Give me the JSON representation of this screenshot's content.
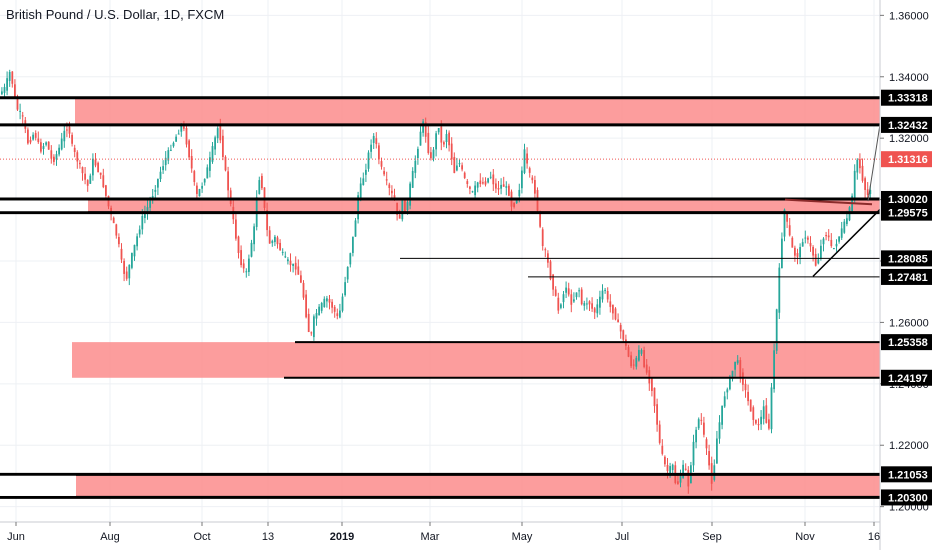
{
  "chart_data": {
    "type": "candlestick",
    "title": "British Pound / U.S. Dollar, 1D, FXCM",
    "ylim": [
      1.195,
      1.365
    ],
    "grid": true,
    "y_ticks": [
      {
        "v": 1.36,
        "label": "1.36000"
      },
      {
        "v": 1.34,
        "label": "1.34000"
      },
      {
        "v": 1.32,
        "label": "1.32000"
      },
      {
        "v": 1.3,
        "label": "1.30000"
      },
      {
        "v": 1.28,
        "label": "1.28000"
      },
      {
        "v": 1.26,
        "label": "1.26000"
      },
      {
        "v": 1.24,
        "label": "1.24000"
      },
      {
        "v": 1.22,
        "label": "1.22000"
      },
      {
        "v": 1.2,
        "label": "1.20000"
      }
    ],
    "x_ticks": [
      "Jun",
      "Aug",
      "Oct",
      "13",
      "2019",
      "Mar",
      "May",
      "Jul",
      "Sep",
      "Nov",
      "16"
    ],
    "x_ticks_bold": [
      "2019"
    ],
    "zones": [
      {
        "low": 1.32432,
        "high": 1.33318,
        "label": "supply-zone-upper"
      },
      {
        "low": 1.29575,
        "high": 1.3002,
        "label": "pivot-zone"
      },
      {
        "low": 1.24197,
        "high": 1.25358,
        "label": "mid-zone"
      },
      {
        "low": 1.203,
        "high": 1.21053,
        "label": "demand-zone-lower"
      }
    ],
    "levels": [
      {
        "value": 1.33318,
        "label": "1.33318",
        "style": "heavy"
      },
      {
        "value": 1.32432,
        "label": "1.32432",
        "style": "heavy"
      },
      {
        "value": 1.3002,
        "label": "1.30020",
        "style": "heavy"
      },
      {
        "value": 1.29575,
        "label": "1.29575",
        "style": "heavy"
      },
      {
        "value": 1.28085,
        "label": "1.28085",
        "style": "thin"
      },
      {
        "value": 1.27481,
        "label": "1.27481",
        "style": "thin"
      },
      {
        "value": 1.25358,
        "label": "1.25358",
        "style": "medium"
      },
      {
        "value": 1.24197,
        "label": "1.24197",
        "style": "medium"
      },
      {
        "value": 1.21053,
        "label": "1.21053",
        "style": "heavy"
      },
      {
        "value": 1.203,
        "label": "1.20300",
        "style": "heavy"
      }
    ],
    "last_price": {
      "value": 1.31316,
      "label": "1.31316"
    },
    "price_path": [
      [
        0,
        1.334
      ],
      [
        6,
        1.336
      ],
      [
        12,
        1.342
      ],
      [
        18,
        1.33
      ],
      [
        24,
        1.327
      ],
      [
        30,
        1.318
      ],
      [
        36,
        1.322
      ],
      [
        42,
        1.316
      ],
      [
        48,
        1.319
      ],
      [
        54,
        1.312
      ],
      [
        60,
        1.316
      ],
      [
        66,
        1.322
      ],
      [
        70,
        1.324
      ],
      [
        74,
        1.317
      ],
      [
        80,
        1.312
      ],
      [
        86,
        1.307
      ],
      [
        90,
        1.304
      ],
      [
        94,
        1.313
      ],
      [
        98,
        1.311
      ],
      [
        104,
        1.306
      ],
      [
        110,
        1.298
      ],
      [
        116,
        1.291
      ],
      [
        120,
        1.286
      ],
      [
        124,
        1.278
      ],
      [
        128,
        1.274
      ],
      [
        132,
        1.28
      ],
      [
        138,
        1.287
      ],
      [
        144,
        1.294
      ],
      [
        150,
        1.298
      ],
      [
        156,
        1.303
      ],
      [
        162,
        1.309
      ],
      [
        168,
        1.314
      ],
      [
        174,
        1.318
      ],
      [
        180,
        1.322
      ],
      [
        184,
        1.325
      ],
      [
        188,
        1.319
      ],
      [
        194,
        1.309
      ],
      [
        198,
        1.301
      ],
      [
        204,
        1.305
      ],
      [
        210,
        1.311
      ],
      [
        216,
        1.319
      ],
      [
        220,
        1.324
      ],
      [
        224,
        1.316
      ],
      [
        228,
        1.307
      ],
      [
        232,
        1.299
      ],
      [
        236,
        1.291
      ],
      [
        240,
        1.283
      ],
      [
        244,
        1.278
      ],
      [
        248,
        1.276
      ],
      [
        252,
        1.284
      ],
      [
        256,
        1.291
      ],
      [
        260,
        1.308
      ],
      [
        264,
        1.304
      ],
      [
        268,
        1.291
      ],
      [
        272,
        1.285
      ],
      [
        276,
        1.288
      ],
      [
        280,
        1.285
      ],
      [
        286,
        1.281
      ],
      [
        292,
        1.279
      ],
      [
        298,
        1.278
      ],
      [
        304,
        1.271
      ],
      [
        308,
        1.262
      ],
      [
        312,
        1.254
      ],
      [
        316,
        1.262
      ],
      [
        322,
        1.265
      ],
      [
        328,
        1.268
      ],
      [
        334,
        1.265
      ],
      [
        340,
        1.261
      ],
      [
        344,
        1.268
      ],
      [
        348,
        1.276
      ],
      [
        352,
        1.283
      ],
      [
        356,
        1.29
      ],
      [
        360,
        1.302
      ],
      [
        364,
        1.306
      ],
      [
        368,
        1.311
      ],
      [
        372,
        1.318
      ],
      [
        376,
        1.321
      ],
      [
        380,
        1.314
      ],
      [
        384,
        1.309
      ],
      [
        390,
        1.304
      ],
      [
        396,
        1.3
      ],
      [
        400,
        1.292
      ],
      [
        404,
        1.299
      ],
      [
        408,
        1.296
      ],
      [
        412,
        1.305
      ],
      [
        416,
        1.311
      ],
      [
        420,
        1.318
      ],
      [
        424,
        1.326
      ],
      [
        428,
        1.32
      ],
      [
        432,
        1.312
      ],
      [
        436,
        1.318
      ],
      [
        440,
        1.325
      ],
      [
        444,
        1.316
      ],
      [
        448,
        1.322
      ],
      [
        452,
        1.316
      ],
      [
        456,
        1.309
      ],
      [
        460,
        1.313
      ],
      [
        464,
        1.309
      ],
      [
        468,
        1.305
      ],
      [
        474,
        1.302
      ],
      [
        480,
        1.306
      ],
      [
        486,
        1.305
      ],
      [
        492,
        1.308
      ],
      [
        498,
        1.303
      ],
      [
        504,
        1.305
      ],
      [
        510,
        1.303
      ],
      [
        514,
        1.297
      ],
      [
        518,
        1.3
      ],
      [
        522,
        1.305
      ],
      [
        526,
        1.316
      ],
      [
        530,
        1.309
      ],
      [
        536,
        1.304
      ],
      [
        540,
        1.295
      ],
      [
        544,
        1.285
      ],
      [
        548,
        1.282
      ],
      [
        552,
        1.275
      ],
      [
        556,
        1.27
      ],
      [
        560,
        1.264
      ],
      [
        564,
        1.268
      ],
      [
        568,
        1.272
      ],
      [
        572,
        1.266
      ],
      [
        576,
        1.268
      ],
      [
        580,
        1.272
      ],
      [
        584,
        1.265
      ],
      [
        590,
        1.267
      ],
      [
        596,
        1.263
      ],
      [
        602,
        1.268
      ],
      [
        606,
        1.272
      ],
      [
        610,
        1.266
      ],
      [
        616,
        1.263
      ],
      [
        620,
        1.259
      ],
      [
        626,
        1.254
      ],
      [
        630,
        1.249
      ],
      [
        634,
        1.245
      ],
      [
        638,
        1.248
      ],
      [
        642,
        1.252
      ],
      [
        646,
        1.246
      ],
      [
        650,
        1.242
      ],
      [
        654,
        1.238
      ],
      [
        658,
        1.229
      ],
      [
        662,
        1.219
      ],
      [
        666,
        1.214
      ],
      [
        670,
        1.211
      ],
      [
        674,
        1.214
      ],
      [
        678,
        1.206
      ],
      [
        682,
        1.21
      ],
      [
        686,
        1.214
      ],
      [
        690,
        1.207
      ],
      [
        694,
        1.218
      ],
      [
        698,
        1.226
      ],
      [
        702,
        1.23
      ],
      [
        706,
        1.222
      ],
      [
        710,
        1.215
      ],
      [
        714,
        1.207
      ],
      [
        718,
        1.221
      ],
      [
        722,
        1.229
      ],
      [
        726,
        1.236
      ],
      [
        730,
        1.24
      ],
      [
        734,
        1.244
      ],
      [
        738,
        1.249
      ],
      [
        742,
        1.243
      ],
      [
        746,
        1.239
      ],
      [
        750,
        1.234
      ],
      [
        754,
        1.23
      ],
      [
        758,
        1.226
      ],
      [
        762,
        1.228
      ],
      [
        766,
        1.233
      ],
      [
        770,
        1.223
      ],
      [
        774,
        1.242
      ],
      [
        778,
        1.262
      ],
      [
        782,
        1.282
      ],
      [
        786,
        1.297
      ],
      [
        790,
        1.29
      ],
      [
        794,
        1.284
      ],
      [
        798,
        1.281
      ],
      [
        802,
        1.284
      ],
      [
        806,
        1.289
      ],
      [
        810,
        1.286
      ],
      [
        814,
        1.283
      ],
      [
        818,
        1.278
      ],
      [
        822,
        1.284
      ],
      [
        826,
        1.289
      ],
      [
        830,
        1.288
      ],
      [
        834,
        1.283
      ],
      [
        838,
        1.286
      ],
      [
        842,
        1.289
      ],
      [
        846,
        1.292
      ],
      [
        850,
        1.295
      ],
      [
        854,
        1.301
      ],
      [
        858,
        1.314
      ],
      [
        862,
        1.31
      ],
      [
        866,
        1.304
      ],
      [
        870,
        1.301
      ],
      [
        874,
        1.306
      ]
    ]
  }
}
